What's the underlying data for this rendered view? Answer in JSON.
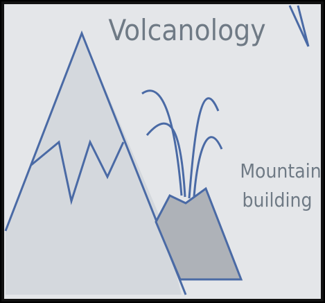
{
  "title": "Volcanology",
  "labels": [
    "Mountain",
    "building"
  ]
}
